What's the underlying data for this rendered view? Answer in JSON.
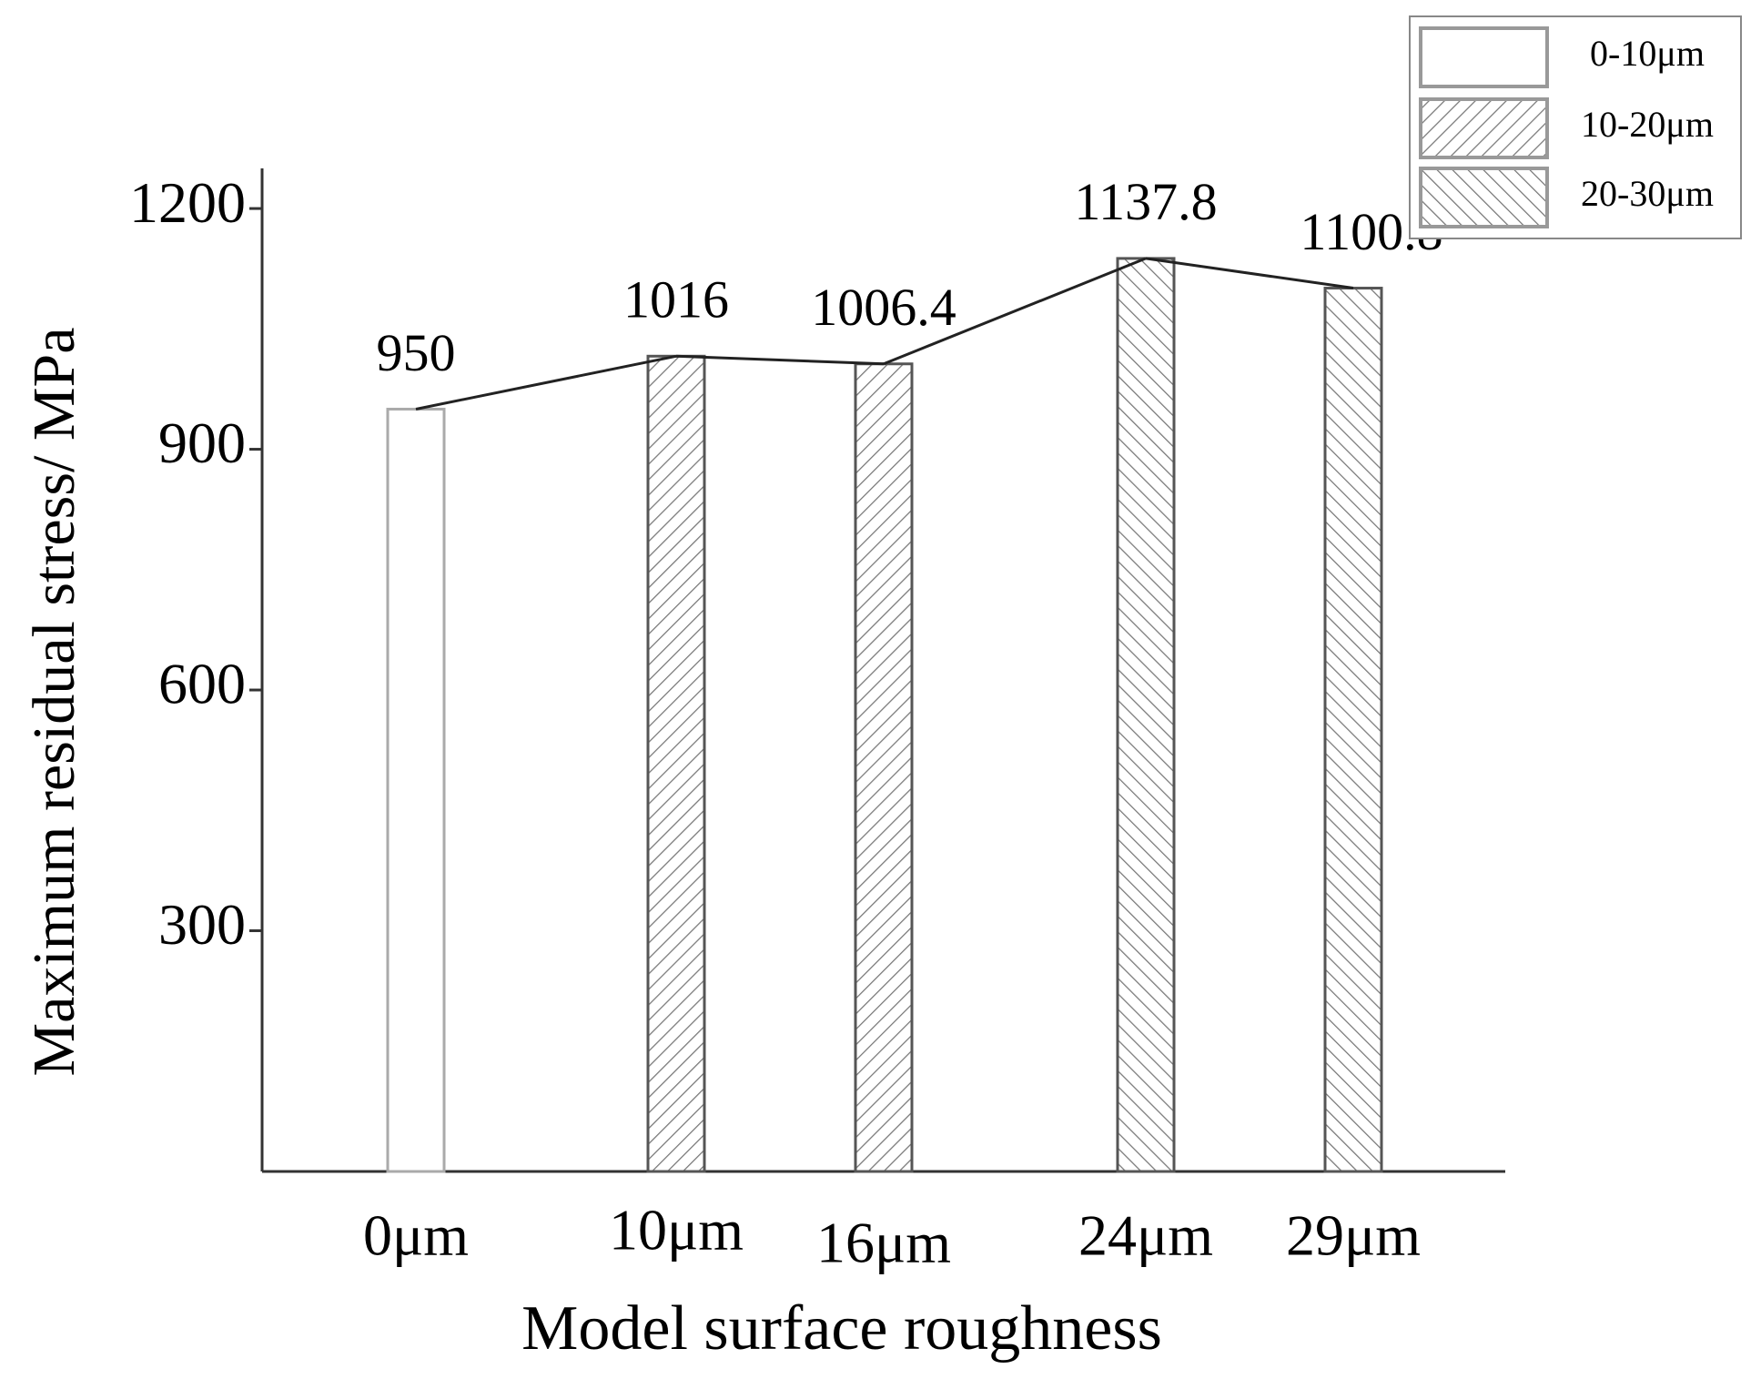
{
  "chart_data": {
    "type": "bar",
    "x_label": "Model surface roughness",
    "y_label": "Maximum residual stress/ MPa",
    "categories": [
      "0μm",
      "10μm",
      "16μm",
      "24μm",
      "29μm"
    ],
    "series": [
      {
        "name": "0-10μm",
        "color": "#ffffff",
        "pattern": "none",
        "values": [
          950,
          null,
          null,
          null,
          null
        ]
      },
      {
        "name": "10-20μm",
        "color": "#ffffff",
        "pattern": "forward-hatch",
        "values": [
          null,
          1016,
          1006.4,
          null,
          null
        ]
      },
      {
        "name": "20-30μm",
        "color": "#ffffff",
        "pattern": "back-hatch",
        "values": [
          null,
          null,
          null,
          1137.8,
          1100.8
        ]
      }
    ],
    "connect_line": true,
    "ylim": [
      0,
      1250
    ],
    "yticks": [
      300,
      600,
      900,
      1200
    ],
    "legend": "top-right"
  }
}
